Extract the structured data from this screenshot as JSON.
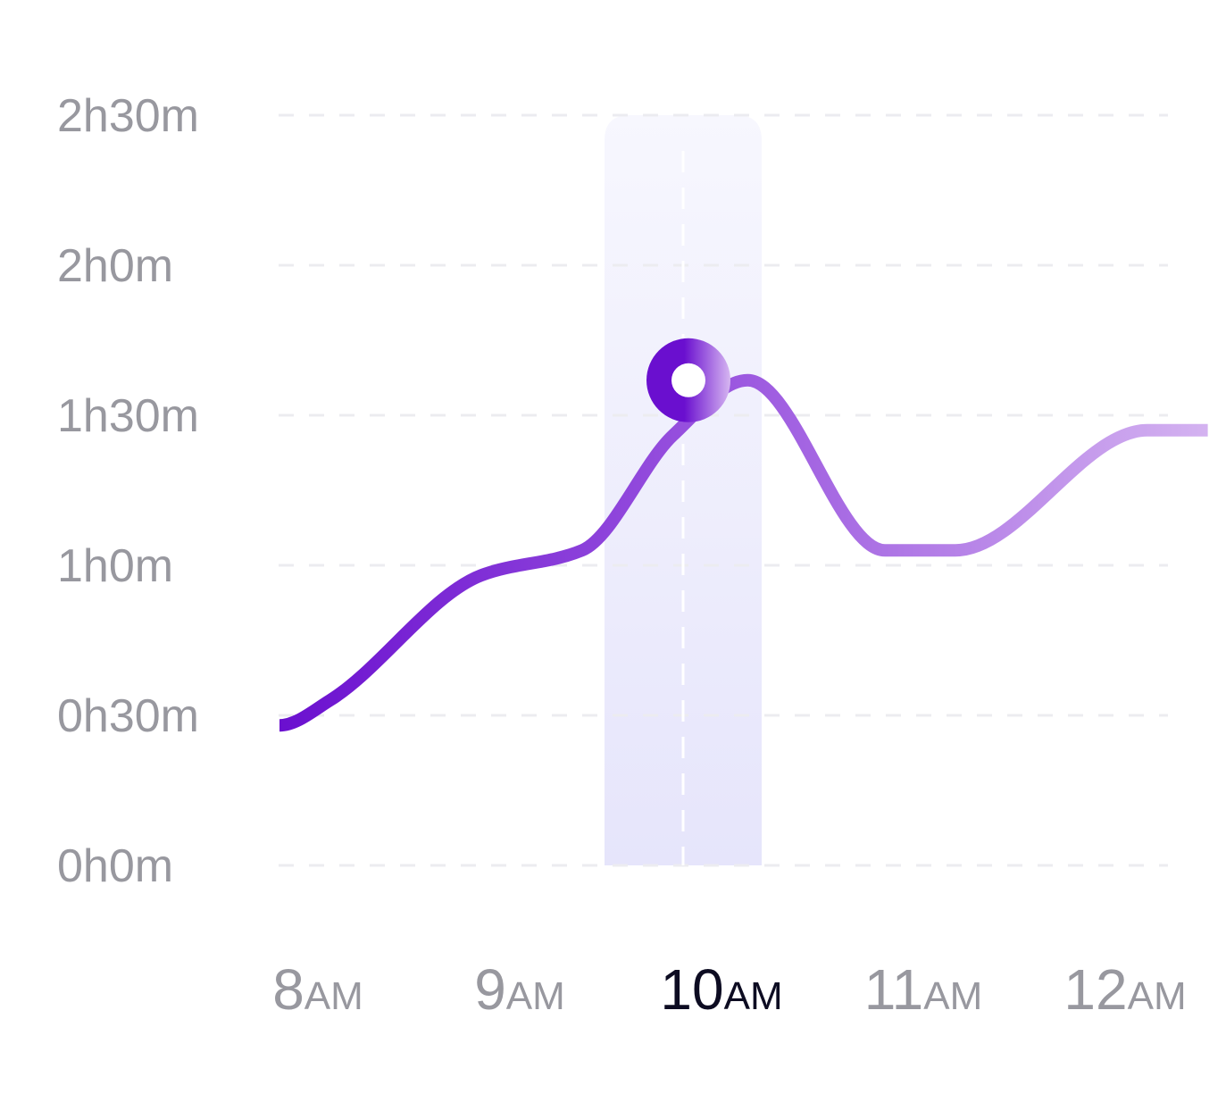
{
  "chart_data": {
    "type": "line",
    "title": "",
    "xlabel": "",
    "ylabel": "",
    "x_ticks": [
      {
        "hour": "8",
        "period": "AM"
      },
      {
        "hour": "9",
        "period": "AM"
      },
      {
        "hour": "10",
        "period": "AM"
      },
      {
        "hour": "11",
        "period": "AM"
      },
      {
        "hour": "12",
        "period": "AM"
      }
    ],
    "y_ticks": [
      {
        "value": 0,
        "label": "0h0m"
      },
      {
        "value": 30,
        "label": "0h30m"
      },
      {
        "value": 60,
        "label": "1h0m"
      },
      {
        "value": 90,
        "label": "1h30m"
      },
      {
        "value": 120,
        "label": "2h0m"
      },
      {
        "value": 150,
        "label": "2h30m"
      }
    ],
    "y_unit": "minutes",
    "ylim": [
      0,
      150
    ],
    "xlim": [
      8,
      12.6
    ],
    "grid": true,
    "series": [
      {
        "x": [
          8.0,
          8.25,
          9.0,
          9.5,
          9.95,
          10.32,
          11.0,
          11.35,
          12.3,
          12.6
        ],
        "values": [
          28,
          33,
          58,
          63,
          86,
          97,
          63,
          63,
          87,
          87
        ]
      }
    ],
    "highlighted": {
      "tick_index": 2,
      "x": 10.0,
      "value": 97
    },
    "colors": {
      "line_start": "#6a0fcf",
      "line_mid": "#9d5ae0",
      "line_end": "#d6b6f1",
      "highlight_band_top": "#f7f7fe",
      "highlight_band_bottom": "#e6e5fb",
      "grid": "#ececf0",
      "tick_label": "#98989f",
      "tick_label_active": "#0d0c22",
      "marker_dark": "#6a0fcf",
      "marker_light": "#d6b6f1"
    }
  }
}
